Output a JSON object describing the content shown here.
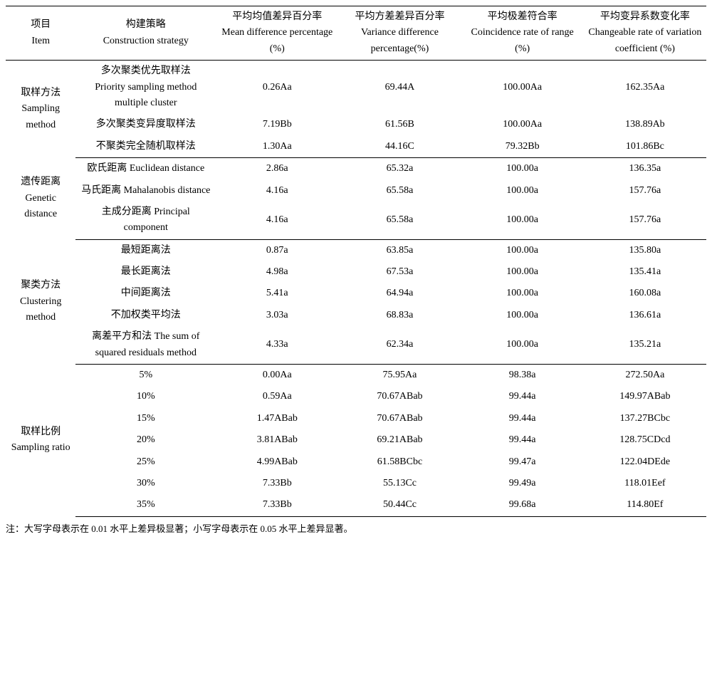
{
  "headers": {
    "item": "项目\nItem",
    "strategy": "构建策略\nConstruction strategy",
    "mean_diff": "平均均值差异百分率\nMean difference percentage (%)",
    "var_diff": "平均方差差异百分率 Variance difference percentage(%)",
    "range_coin": "平均极差符合率 Coincidence rate of range\n(%)",
    "cv_change": "平均变异系数变化率 Changeable rate of variation coefficient (%)"
  },
  "sections": [
    {
      "item": "取样方法\nSampling method",
      "rows": [
        {
          "strategy": "多次聚类优先取样法\nPriority sampling method multiple cluster",
          "mean_diff": "0.26Aa",
          "var_diff": "69.44A",
          "range_coin": "100.00Aa",
          "cv_change": "162.35Aa"
        },
        {
          "strategy": "多次聚类变异度取样法",
          "mean_diff": "7.19Bb",
          "var_diff": "61.56B",
          "range_coin": "100.00Aa",
          "cv_change": "138.89Ab"
        },
        {
          "strategy": "不聚类完全随机取样法",
          "mean_diff": "1.30Aa",
          "var_diff": "44.16C",
          "range_coin": "79.32Bb",
          "cv_change": "101.86Bc"
        }
      ]
    },
    {
      "item": "遗传距离\nGenetic distance",
      "rows": [
        {
          "strategy": "欧氏距离 Euclidean distance",
          "mean_diff": "2.86a",
          "var_diff": "65.32a",
          "range_coin": "100.00a",
          "cv_change": "136.35a"
        },
        {
          "strategy": "马氏距离 Mahalanobis distance",
          "mean_diff": "4.16a",
          "var_diff": "65.58a",
          "range_coin": "100.00a",
          "cv_change": "157.76a"
        },
        {
          "strategy": "主成分距离 Principal component",
          "mean_diff": "4.16a",
          "var_diff": "65.58a",
          "range_coin": "100.00a",
          "cv_change": "157.76a"
        }
      ]
    },
    {
      "item": "聚类方法\nClustering method",
      "rows": [
        {
          "strategy": "最短距离法",
          "mean_diff": "0.87a",
          "var_diff": "63.85a",
          "range_coin": "100.00a",
          "cv_change": "135.80a"
        },
        {
          "strategy": "最长距离法",
          "mean_diff": "4.98a",
          "var_diff": "67.53a",
          "range_coin": "100.00a",
          "cv_change": "135.41a"
        },
        {
          "strategy": "中间距离法",
          "mean_diff": "5.41a",
          "var_diff": "64.94a",
          "range_coin": "100.00a",
          "cv_change": "160.08a"
        },
        {
          "strategy": "不加权类平均法",
          "mean_diff": "3.03a",
          "var_diff": "68.83a",
          "range_coin": "100.00a",
          "cv_change": "136.61a"
        },
        {
          "strategy": "离差平方和法 The sum of squared residuals method",
          "mean_diff": "4.33a",
          "var_diff": "62.34a",
          "range_coin": "100.00a",
          "cv_change": "135.21a"
        }
      ]
    },
    {
      "item": "取样比例\nSampling ratio",
      "rows": [
        {
          "strategy": "5%",
          "mean_diff": "0.00Aa",
          "var_diff": "75.95Aa",
          "range_coin": "98.38a",
          "cv_change": "272.50Aa"
        },
        {
          "strategy": "10%",
          "mean_diff": "0.59Aa",
          "var_diff": "70.67ABab",
          "range_coin": "99.44a",
          "cv_change": "149.97ABab"
        },
        {
          "strategy": "15%",
          "mean_diff": "1.47ABab",
          "var_diff": "70.67ABab",
          "range_coin": "99.44a",
          "cv_change": "137.27BCbc"
        },
        {
          "strategy": "20%",
          "mean_diff": "3.81ABab",
          "var_diff": "69.21ABab",
          "range_coin": "99.44a",
          "cv_change": "128.75CDcd"
        },
        {
          "strategy": "25%",
          "mean_diff": "4.99ABab",
          "var_diff": "61.58BCbc",
          "range_coin": "99.47a",
          "cv_change": "122.04DEde"
        },
        {
          "strategy": "30%",
          "mean_diff": "7.33Bb",
          "var_diff": "55.13Cc",
          "range_coin": "99.49a",
          "cv_change": "118.01Eef"
        },
        {
          "strategy": "35%",
          "mean_diff": "7.33Bb",
          "var_diff": "50.44Cc",
          "range_coin": "99.68a",
          "cv_change": "114.80Ef"
        }
      ]
    }
  ],
  "footnote": "注：大写字母表示在 0.01 水平上差异极显著；小写字母表示在 0.05 水平上差异显著。"
}
